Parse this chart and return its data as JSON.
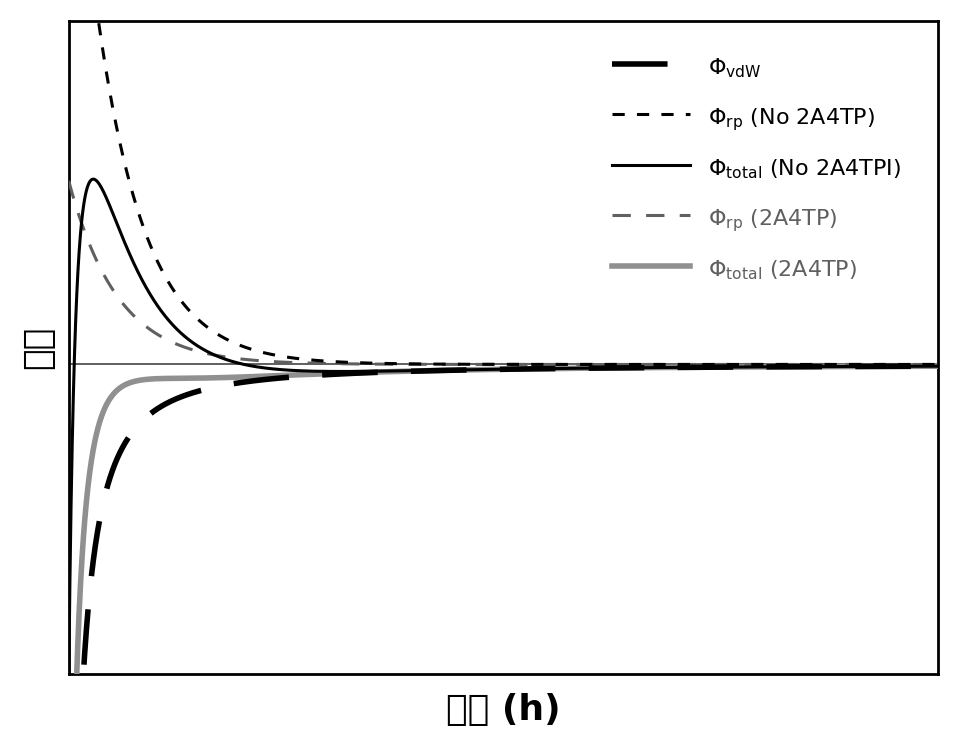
{
  "xlabel": "距离 (h)",
  "ylabel": "势能",
  "xlabel_fontsize": 26,
  "ylabel_fontsize": 26,
  "background_color": "#ffffff",
  "black_color": "#000000",
  "dark_gray_color": "#606060",
  "light_gray_color": "#909090",
  "lw_vdw": 4.0,
  "lw_rp_no": 2.2,
  "lw_total_no": 2.2,
  "lw_rp_2a": 2.2,
  "lw_total_2a": 4.0,
  "legend_fontsize": 16
}
